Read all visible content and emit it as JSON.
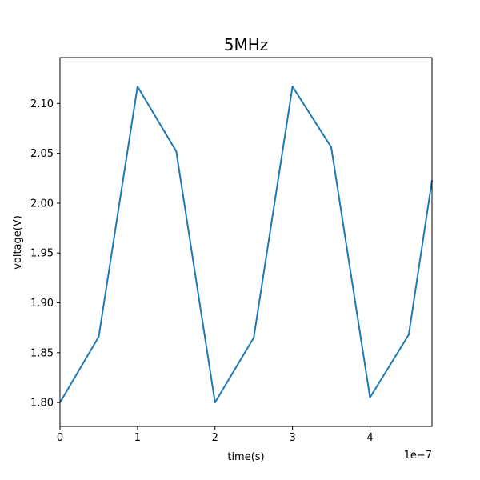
{
  "chart_data": {
    "type": "line",
    "title": "5MHz",
    "xlabel": "time(s)",
    "ylabel": "voltage(V)",
    "x_offset_text": "1e−7",
    "xlim": [
      0,
      4.8e-07
    ],
    "ylim": [
      1.776,
      2.146
    ],
    "x_ticks": [
      {
        "value": 0,
        "label": "0"
      },
      {
        "value": 1e-07,
        "label": "1"
      },
      {
        "value": 2e-07,
        "label": "2"
      },
      {
        "value": 3e-07,
        "label": "3"
      },
      {
        "value": 4e-07,
        "label": "4"
      }
    ],
    "y_ticks": [
      {
        "value": 1.8,
        "label": "1.80"
      },
      {
        "value": 1.85,
        "label": "1.85"
      },
      {
        "value": 1.9,
        "label": "1.90"
      },
      {
        "value": 1.95,
        "label": "1.95"
      },
      {
        "value": 2.0,
        "label": "2.00"
      },
      {
        "value": 2.05,
        "label": "2.05"
      },
      {
        "value": 2.1,
        "label": "2.10"
      }
    ],
    "grid": false,
    "series": [
      {
        "color": "#1f77b4",
        "x": [
          0,
          5e-08,
          1e-07,
          1.5e-07,
          2e-07,
          2.5e-07,
          3e-07,
          3.5e-07,
          4e-07,
          4.5e-07,
          4.8e-07
        ],
        "y": [
          1.8,
          1.866,
          2.117,
          2.052,
          1.8,
          1.865,
          2.117,
          2.056,
          1.805,
          1.868,
          2.023
        ]
      }
    ]
  }
}
